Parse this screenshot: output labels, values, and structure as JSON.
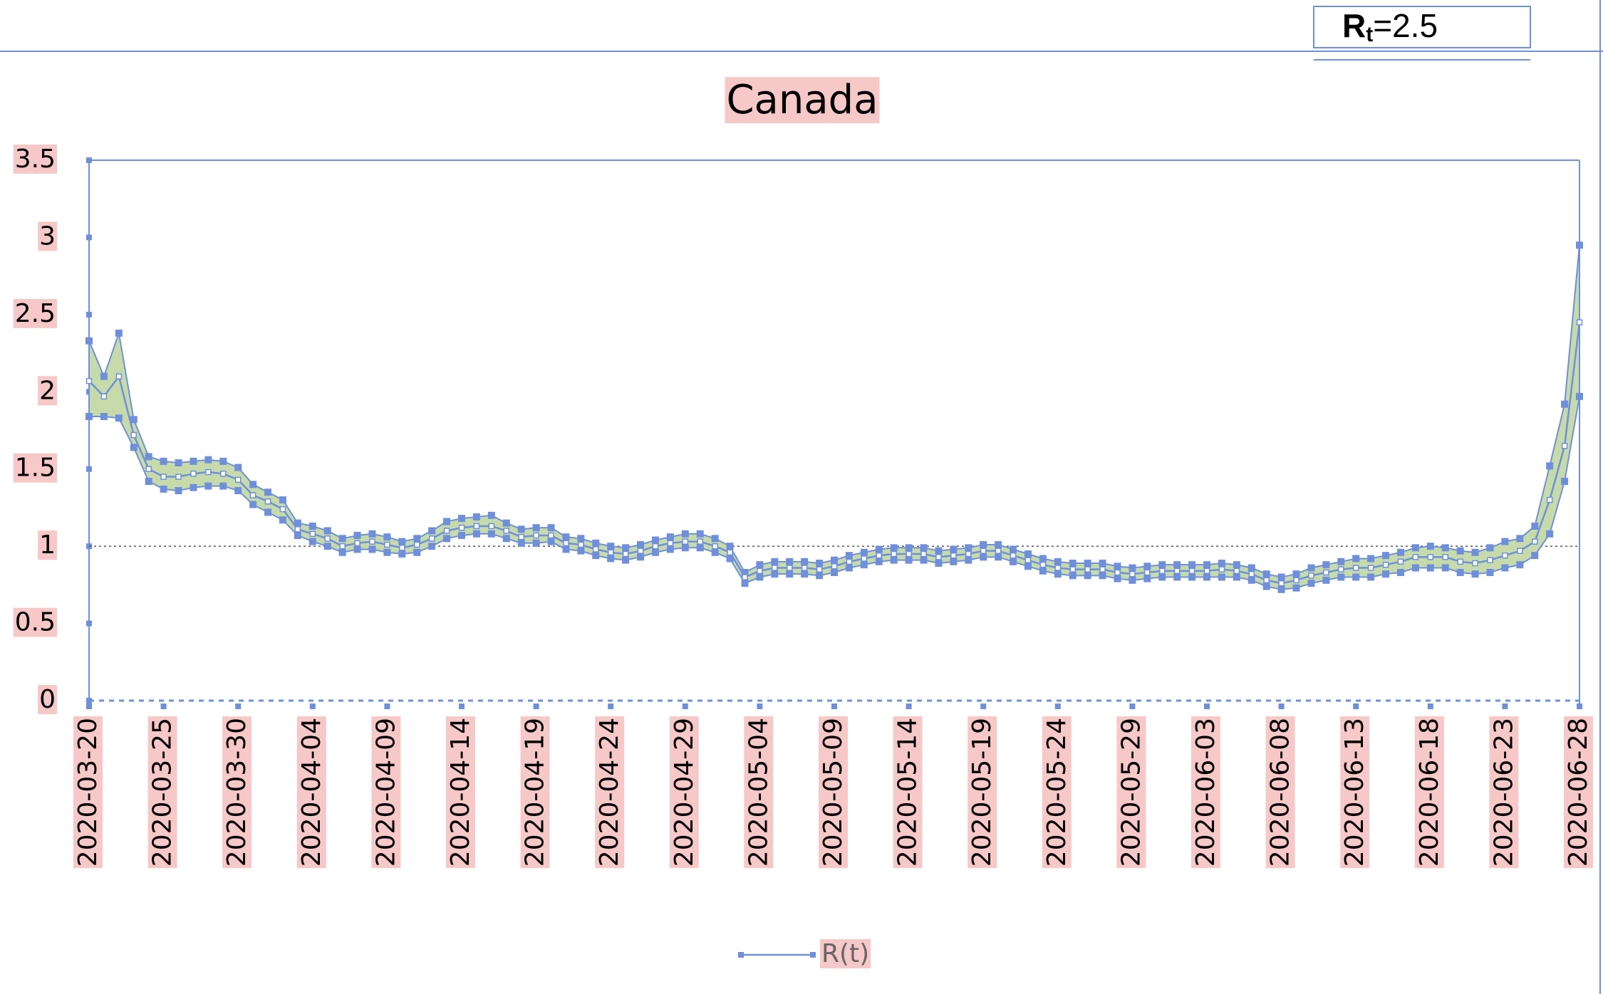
{
  "chart_data": {
    "type": "line",
    "title": "Canada",
    "annotation": {
      "symbol": "R",
      "subscript": "t",
      "text": "=2.5"
    },
    "categories": [
      "2020-03-20",
      null,
      null,
      null,
      null,
      "2020-03-25",
      null,
      null,
      null,
      null,
      "2020-03-30",
      null,
      null,
      null,
      null,
      "2020-04-04",
      null,
      null,
      null,
      null,
      "2020-04-09",
      null,
      null,
      null,
      null,
      "2020-04-14",
      null,
      null,
      null,
      null,
      "2020-04-19",
      null,
      null,
      null,
      null,
      "2020-04-24",
      null,
      null,
      null,
      null,
      "2020-04-29",
      null,
      null,
      null,
      null,
      "2020-05-04",
      null,
      null,
      null,
      null,
      "2020-05-09",
      null,
      null,
      null,
      null,
      "2020-05-14",
      null,
      null,
      null,
      null,
      "2020-05-19",
      null,
      null,
      null,
      null,
      "2020-05-24",
      null,
      null,
      null,
      null,
      "2020-05-29",
      null,
      null,
      null,
      null,
      "2020-06-03",
      null,
      null,
      null,
      null,
      "2020-06-08",
      null,
      null,
      null,
      null,
      "2020-06-13",
      null,
      null,
      null,
      null,
      "2020-06-18",
      null,
      null,
      null,
      null,
      "2020-06-23",
      null,
      null,
      null,
      null,
      "2020-06-28"
    ],
    "series": [
      {
        "name": "R(t)",
        "color": "#6f8fdc",
        "values": [
          2.07,
          1.97,
          2.1,
          1.72,
          1.5,
          1.45,
          1.45,
          1.47,
          1.48,
          1.47,
          1.43,
          1.33,
          1.29,
          1.24,
          1.11,
          1.08,
          1.05,
          1.0,
          1.02,
          1.03,
          1.01,
          0.99,
          1.01,
          1.05,
          1.1,
          1.12,
          1.13,
          1.13,
          1.1,
          1.06,
          1.07,
          1.07,
          1.02,
          1.01,
          0.98,
          0.96,
          0.95,
          0.97,
          1.0,
          1.02,
          1.03,
          1.03,
          1.0,
          0.96,
          0.8,
          0.84,
          0.86,
          0.86,
          0.86,
          0.85,
          0.87,
          0.9,
          0.92,
          0.94,
          0.95,
          0.95,
          0.95,
          0.93,
          0.94,
          0.95,
          0.97,
          0.97,
          0.94,
          0.91,
          0.88,
          0.86,
          0.85,
          0.85,
          0.85,
          0.83,
          0.82,
          0.83,
          0.84,
          0.84,
          0.84,
          0.84,
          0.85,
          0.84,
          0.82,
          0.78,
          0.76,
          0.78,
          0.81,
          0.83,
          0.85,
          0.86,
          0.86,
          0.88,
          0.9,
          0.93,
          0.93,
          0.93,
          0.9,
          0.89,
          0.91,
          0.94,
          0.97,
          1.03,
          1.3,
          1.65,
          2.45
        ]
      }
    ],
    "band": {
      "color": "#c6dba9",
      "upper": [
        2.33,
        2.1,
        2.38,
        1.82,
        1.58,
        1.55,
        1.54,
        1.55,
        1.56,
        1.55,
        1.51,
        1.4,
        1.35,
        1.3,
        1.15,
        1.13,
        1.1,
        1.05,
        1.07,
        1.08,
        1.06,
        1.03,
        1.05,
        1.1,
        1.16,
        1.18,
        1.19,
        1.2,
        1.15,
        1.11,
        1.12,
        1.12,
        1.06,
        1.05,
        1.02,
        1.0,
        0.99,
        1.01,
        1.04,
        1.06,
        1.08,
        1.08,
        1.05,
        1.0,
        0.83,
        0.88,
        0.9,
        0.9,
        0.9,
        0.89,
        0.91,
        0.94,
        0.96,
        0.98,
        0.99,
        0.99,
        0.99,
        0.97,
        0.98,
        0.99,
        1.01,
        1.01,
        0.98,
        0.95,
        0.92,
        0.9,
        0.89,
        0.89,
        0.89,
        0.87,
        0.86,
        0.87,
        0.88,
        0.88,
        0.88,
        0.88,
        0.89,
        0.88,
        0.86,
        0.82,
        0.8,
        0.82,
        0.86,
        0.88,
        0.9,
        0.92,
        0.92,
        0.94,
        0.96,
        0.99,
        1.0,
        0.99,
        0.97,
        0.96,
        0.99,
        1.03,
        1.05,
        1.13,
        1.52,
        1.92,
        2.95
      ],
      "lower": [
        1.84,
        1.84,
        1.83,
        1.64,
        1.42,
        1.37,
        1.36,
        1.38,
        1.39,
        1.39,
        1.36,
        1.27,
        1.22,
        1.17,
        1.07,
        1.03,
        1.0,
        0.96,
        0.98,
        0.98,
        0.96,
        0.95,
        0.96,
        1.0,
        1.05,
        1.07,
        1.08,
        1.08,
        1.05,
        1.02,
        1.02,
        1.03,
        0.98,
        0.97,
        0.94,
        0.92,
        0.91,
        0.93,
        0.96,
        0.98,
        0.99,
        0.99,
        0.96,
        0.92,
        0.76,
        0.8,
        0.82,
        0.82,
        0.82,
        0.81,
        0.83,
        0.86,
        0.88,
        0.9,
        0.91,
        0.91,
        0.91,
        0.89,
        0.9,
        0.91,
        0.93,
        0.93,
        0.9,
        0.87,
        0.84,
        0.82,
        0.81,
        0.81,
        0.81,
        0.79,
        0.78,
        0.79,
        0.8,
        0.8,
        0.8,
        0.8,
        0.8,
        0.8,
        0.78,
        0.74,
        0.72,
        0.73,
        0.76,
        0.78,
        0.8,
        0.8,
        0.8,
        0.82,
        0.83,
        0.86,
        0.86,
        0.86,
        0.83,
        0.82,
        0.83,
        0.86,
        0.88,
        0.94,
        1.08,
        1.42,
        1.97
      ]
    },
    "reference_line": 1,
    "ylim": [
      0,
      3.5
    ],
    "yticks": [
      0,
      0.5,
      1,
      1.5,
      2,
      2.5,
      3,
      3.5
    ],
    "legend": "bottom"
  }
}
